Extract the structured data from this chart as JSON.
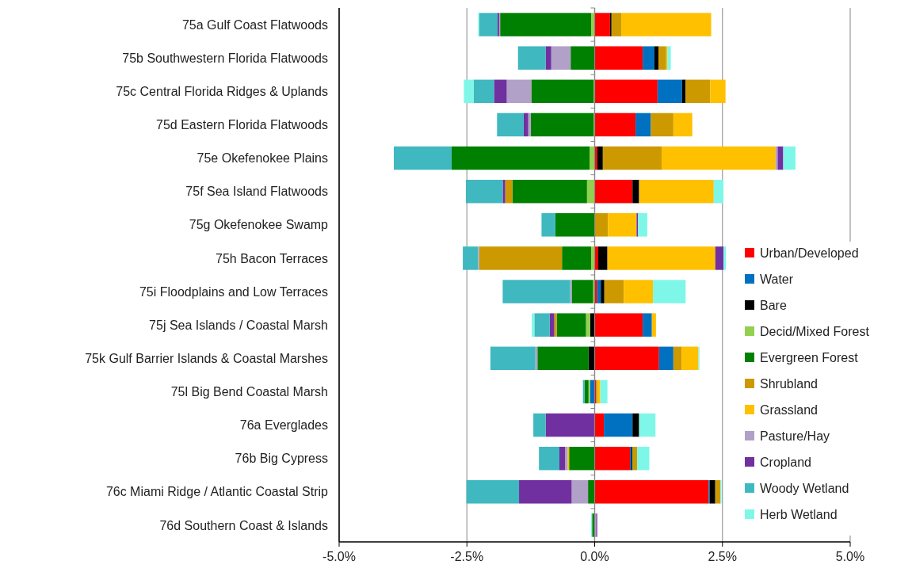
{
  "chart_data": {
    "type": "bar",
    "orientation": "horizontal",
    "stacked": true,
    "categories": [
      "75a Gulf Coast Flatwoods",
      "75b Southwestern Florida Flatwoods",
      "75c Central Florida Ridges & Uplands",
      "75d Eastern Florida Flatwoods",
      "75e Okefenokee Plains",
      "75f Sea Island Flatwoods",
      "75g Okefenokee Swamp",
      "75h Bacon Terraces",
      "75i Floodplains and Low Terraces",
      "75j Sea Islands / Coastal Marsh",
      "75k Gulf Barrier Islands & Coastal Marshes",
      "75l Big Bend Coastal Marsh",
      "76a Everglades",
      "76b Big Cypress",
      "76c Miami Ridge / Atlantic Coastal Strip",
      "76d Southern Coast & Islands"
    ],
    "series": [
      {
        "name": "Urban/Developed",
        "color": "#ff0000",
        "values": [
          0.3,
          0.94,
          1.23,
          0.8,
          0.05,
          0.74,
          0,
          0.07,
          0.05,
          0.94,
          1.26,
          0.03,
          0.18,
          0.69,
          2.23,
          0
        ]
      },
      {
        "name": "Water",
        "color": "#0070c0",
        "values": [
          0,
          0.23,
          0.48,
          0.3,
          0,
          0,
          0,
          0,
          0.07,
          0.18,
          0.28,
          -0.09,
          0.56,
          0.03,
          0.02,
          0
        ]
      },
      {
        "name": "Bare",
        "color": "#000000",
        "values": [
          0.03,
          0.08,
          0.07,
          0,
          0.11,
          0.13,
          0,
          0.18,
          0.07,
          -0.09,
          -0.12,
          0,
          0.13,
          0.02,
          0.11,
          0
        ]
      },
      {
        "name": "Decid/Mixed Forest",
        "color": "#92d050",
        "values": [
          -0.07,
          0,
          -0.02,
          -0.02,
          -0.1,
          -0.15,
          0,
          -0.07,
          -0.03,
          -0.08,
          0,
          -0.03,
          0,
          0,
          0,
          0
        ]
      },
      {
        "name": "Evergreen Forest",
        "color": "#008000",
        "values": [
          -1.78,
          -0.47,
          -1.22,
          -1.23,
          -2.7,
          -1.46,
          -0.77,
          -0.57,
          -0.42,
          -0.57,
          -1.0,
          -0.08,
          0,
          -0.5,
          -0.13,
          -0.05
        ]
      },
      {
        "name": "Shrubland",
        "color": "#cc9900",
        "values": [
          0.19,
          0.15,
          0.48,
          0.44,
          1.15,
          -0.14,
          0.26,
          -1.62,
          0.38,
          -0.05,
          0.16,
          0.03,
          0,
          0.09,
          0.1,
          0
        ]
      },
      {
        "name": "Grassland",
        "color": "#ffc000",
        "values": [
          1.76,
          0.02,
          0.3,
          0.37,
          2.23,
          1.46,
          0.56,
          2.11,
          0.57,
          0.08,
          0.33,
          0.05,
          0,
          -0.03,
          0,
          0
        ]
      },
      {
        "name": "Pasture/Hay",
        "color": "#b1a0c7",
        "values": [
          -0.02,
          -0.38,
          -0.48,
          -0.05,
          0.04,
          0,
          0,
          -0.02,
          -0.03,
          0,
          -0.04,
          0,
          0,
          -0.05,
          -0.32,
          0.03
        ]
      },
      {
        "name": "Cropland",
        "color": "#7030a0",
        "values": [
          -0.03,
          -0.11,
          -0.25,
          -0.09,
          0.11,
          -0.05,
          0.03,
          0.16,
          0,
          -0.09,
          0,
          0,
          -0.96,
          -0.11,
          -1.03,
          0.02
        ]
      },
      {
        "name": "Woody Wetland",
        "color": "#3fb8c0",
        "values": [
          -0.36,
          -0.54,
          -0.4,
          -0.52,
          -1.13,
          -0.72,
          -0.27,
          -0.3,
          -1.32,
          -0.3,
          -0.88,
          -0.03,
          -0.24,
          -0.4,
          -1.03,
          0
        ]
      },
      {
        "name": "Herb Wetland",
        "color": "#7ff7e8",
        "values": [
          -0.02,
          0.07,
          -0.19,
          0,
          0.24,
          0.19,
          0.18,
          0.05,
          0.64,
          -0.05,
          0.02,
          0.14,
          0.32,
          0.24,
          0.02,
          -0.02
        ]
      }
    ],
    "xlim": [
      -5,
      5
    ],
    "xticks": [
      {
        "value": -5,
        "label": "-5.0%"
      },
      {
        "value": -2.5,
        "label": "-2.5%"
      },
      {
        "value": 0,
        "label": "0.0%"
      },
      {
        "value": 2.5,
        "label": "2.5%"
      },
      {
        "value": 5,
        "label": "5.0%"
      }
    ],
    "grid": "x",
    "legend": "right"
  }
}
